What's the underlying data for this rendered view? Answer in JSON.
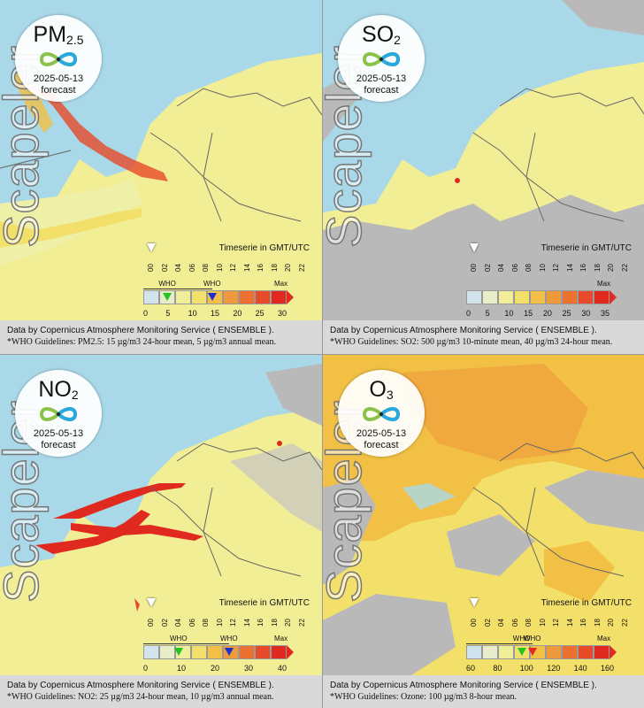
{
  "watermark": "Scapeler",
  "timeseries_label": "Timeserie in GMT/UTC",
  "date": "2025-05-13",
  "forecast_label": "forecast",
  "who_label": "WHO",
  "max_label": "Max",
  "time_ticks": [
    "00",
    "02",
    "04",
    "06",
    "08",
    "10",
    "12",
    "14",
    "16",
    "18",
    "20",
    "22"
  ],
  "credit": "Data by Copernicus Atmosphere Monitoring Service ( ENSEMBLE ).",
  "panels": [
    {
      "pollutant": "PM",
      "subscript": "2.5",
      "scale_labels": [
        "0",
        "5",
        "10",
        "15",
        "20",
        "25",
        "30"
      ],
      "who_note": "*WHO Guidelines: PM2.5: 15 µg/m3 24-hour mean, 5 µg/m3 annual mean.",
      "colors": [
        "#d4e4ec",
        "#e8ecc8",
        "#f1ee9a",
        "#f3e06a",
        "#f1c044",
        "#ef9a3a",
        "#ec7030",
        "#e64a28",
        "#e02a20"
      ],
      "who_markers": [
        {
          "value": 5,
          "color": "#22c422"
        },
        {
          "value": 15,
          "color": "#1a2fd0"
        }
      ]
    },
    {
      "pollutant": "SO",
      "subscript": "2",
      "scale_labels": [
        "0",
        "5",
        "10",
        "15",
        "20",
        "25",
        "30",
        "35"
      ],
      "who_note": "*WHO Guidelines: SO2: 500 µg/m3 10-minute mean, 40 µg/m3 24-hour mean.",
      "colors": [
        "#d4e4ec",
        "#e8ecc8",
        "#f1ee9a",
        "#f3e06a",
        "#f1c044",
        "#ef9a3a",
        "#ec7030",
        "#e64a28",
        "#e02a20"
      ],
      "who_markers": []
    },
    {
      "pollutant": "NO",
      "subscript": "2",
      "scale_labels": [
        "0",
        "10",
        "20",
        "30",
        "40"
      ],
      "who_note": "*WHO Guidelines: NO2: 25 µg/m3 24-hour mean, 10 µg/m3 annual mean.",
      "colors": [
        "#d4e4ec",
        "#e8ecc8",
        "#f1ee9a",
        "#f3e06a",
        "#f1c044",
        "#ef9a3a",
        "#ec7030",
        "#e64a28",
        "#e02a20"
      ],
      "who_markers": [
        {
          "value": 10,
          "color": "#22c422"
        },
        {
          "value": 25,
          "color": "#1a2fd0"
        }
      ]
    },
    {
      "pollutant": "O",
      "subscript": "3",
      "scale_labels": [
        "60",
        "80",
        "100",
        "120",
        "140",
        "160"
      ],
      "who_note": "*WHO Guidelines: Ozone: 100 µg/m3 8-hour mean.",
      "colors": [
        "#cfe2ee",
        "#e8ecc8",
        "#f1ee9a",
        "#f3e06a",
        "#f1c044",
        "#ef9a3a",
        "#ec7030",
        "#e64a28",
        "#e02a20"
      ],
      "who_markers": [
        {
          "value": 100,
          "color": "#22c422"
        },
        {
          "value": 108,
          "color": "#e02a20"
        }
      ]
    }
  ]
}
